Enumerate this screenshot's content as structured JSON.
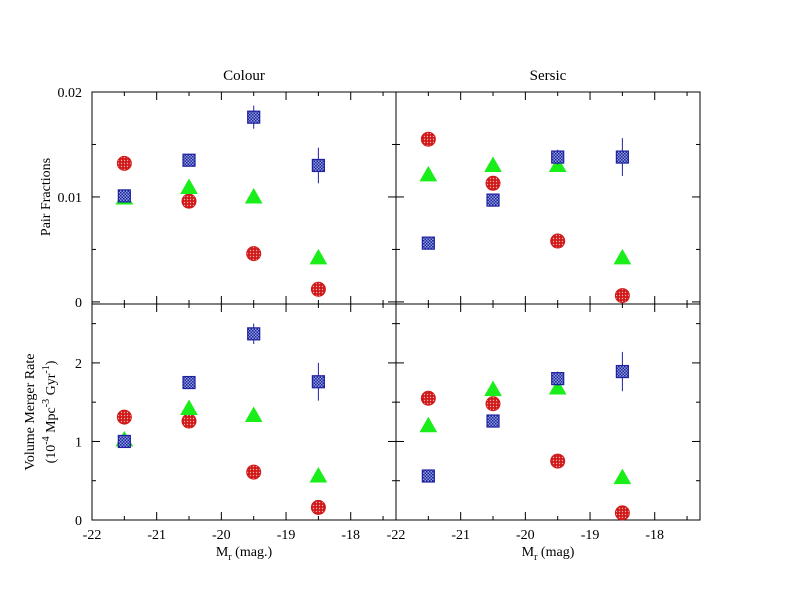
{
  "colors": {
    "red": "#d01818",
    "green": "#1aee1a",
    "blue": "#2020a0",
    "blue_fill": "#8aa0d8"
  },
  "chart_data": [
    {
      "type": "scatter",
      "title": "Colour",
      "xlabel": "",
      "ylabel": "Pair Fractions",
      "xlim": [
        -22,
        -17.3
      ],
      "ylim": [
        -0.0002,
        0.02
      ],
      "yticks": [
        "0",
        "0.01",
        "0.02"
      ],
      "series": [
        {
          "name": "red-circles",
          "marker": "circle",
          "points": [
            {
              "x": -21.5,
              "y": 0.0132
            },
            {
              "x": -20.5,
              "y": 0.0096
            },
            {
              "x": -19.5,
              "y": 0.0046
            },
            {
              "x": -18.5,
              "y": 0.0012
            }
          ]
        },
        {
          "name": "green-triangles",
          "marker": "triangle",
          "points": [
            {
              "x": -21.5,
              "y": 0.0099
            },
            {
              "x": -20.5,
              "y": 0.0109
            },
            {
              "x": -19.5,
              "y": 0.01
            },
            {
              "x": -18.5,
              "y": 0.0042
            }
          ]
        },
        {
          "name": "blue-squares",
          "marker": "square",
          "points": [
            {
              "x": -21.5,
              "y": 0.0101,
              "err": 0.0003
            },
            {
              "x": -20.5,
              "y": 0.0135,
              "err": 0.0004
            },
            {
              "x": -19.5,
              "y": 0.0176,
              "err": 0.0011
            },
            {
              "x": -18.5,
              "y": 0.013,
              "err": 0.0017
            }
          ]
        }
      ]
    },
    {
      "type": "scatter",
      "title": "Sersic",
      "xlabel": "",
      "ylabel": "",
      "xlim": [
        -22,
        -17.3
      ],
      "ylim": [
        -0.0002,
        0.02
      ],
      "yticks": [],
      "series": [
        {
          "name": "red-circles",
          "marker": "circle",
          "points": [
            {
              "x": -21.5,
              "y": 0.0155
            },
            {
              "x": -20.5,
              "y": 0.0113
            },
            {
              "x": -19.5,
              "y": 0.0058
            },
            {
              "x": -18.5,
              "y": 0.0006
            }
          ]
        },
        {
          "name": "green-triangles",
          "marker": "triangle",
          "points": [
            {
              "x": -21.5,
              "y": 0.0121
            },
            {
              "x": -20.5,
              "y": 0.013
            },
            {
              "x": -19.5,
              "y": 0.013
            },
            {
              "x": -18.5,
              "y": 0.0042
            }
          ]
        },
        {
          "name": "blue-squares",
          "marker": "square",
          "points": [
            {
              "x": -21.5,
              "y": 0.0056,
              "err": 0.0002
            },
            {
              "x": -20.5,
              "y": 0.0097,
              "err": 0.0003
            },
            {
              "x": -19.5,
              "y": 0.0138,
              "err": 0.0007
            },
            {
              "x": -18.5,
              "y": 0.0138,
              "err": 0.0018
            }
          ]
        }
      ]
    },
    {
      "type": "scatter",
      "title": "",
      "xlabel": "M_r (mag.)",
      "ylabel": "Volume Merger Rate (10^-4 Mpc^-3 Gyr^-1)",
      "xlim": [
        -22,
        -17.3
      ],
      "ylim": [
        0,
        2.75
      ],
      "yticks": [
        "0",
        "1",
        "2"
      ],
      "xticks": [
        "-22",
        "-21",
        "-20",
        "-19",
        "-18"
      ],
      "series": [
        {
          "name": "red-circles",
          "marker": "circle",
          "points": [
            {
              "x": -21.5,
              "y": 1.31
            },
            {
              "x": -20.5,
              "y": 1.26
            },
            {
              "x": -19.5,
              "y": 0.61
            },
            {
              "x": -18.5,
              "y": 0.16
            }
          ]
        },
        {
          "name": "green-triangles",
          "marker": "triangle",
          "points": [
            {
              "x": -21.5,
              "y": 1.02
            },
            {
              "x": -20.5,
              "y": 1.42
            },
            {
              "x": -19.5,
              "y": 1.33
            },
            {
              "x": -18.5,
              "y": 0.56
            }
          ]
        },
        {
          "name": "blue-squares",
          "marker": "square",
          "points": [
            {
              "x": -21.5,
              "y": 1.0,
              "err": 0.04
            },
            {
              "x": -20.5,
              "y": 1.75,
              "err": 0.05
            },
            {
              "x": -19.5,
              "y": 2.37,
              "err": 0.13
            },
            {
              "x": -18.5,
              "y": 1.76,
              "err": 0.24
            }
          ]
        }
      ]
    },
    {
      "type": "scatter",
      "title": "",
      "xlabel": "M_r (mag)",
      "ylabel": "",
      "xlim": [
        -22,
        -17.3
      ],
      "ylim": [
        0,
        2.75
      ],
      "yticks": [],
      "xticks": [
        "-22",
        "-21",
        "-20",
        "-19",
        "-18"
      ],
      "series": [
        {
          "name": "red-circles",
          "marker": "circle",
          "points": [
            {
              "x": -21.5,
              "y": 1.55
            },
            {
              "x": -20.5,
              "y": 1.48
            },
            {
              "x": -19.5,
              "y": 0.75
            },
            {
              "x": -18.5,
              "y": 0.09
            }
          ]
        },
        {
          "name": "green-triangles",
          "marker": "triangle",
          "points": [
            {
              "x": -21.5,
              "y": 1.2
            },
            {
              "x": -20.5,
              "y": 1.66
            },
            {
              "x": -19.5,
              "y": 1.68
            },
            {
              "x": -18.5,
              "y": 0.54
            }
          ]
        },
        {
          "name": "blue-squares",
          "marker": "square",
          "points": [
            {
              "x": -21.5,
              "y": 0.56,
              "err": 0.03
            },
            {
              "x": -20.5,
              "y": 1.26,
              "err": 0.04
            },
            {
              "x": -19.5,
              "y": 1.8,
              "err": 0.09
            },
            {
              "x": -18.5,
              "y": 1.89,
              "err": 0.25
            }
          ]
        }
      ]
    }
  ],
  "labels": {
    "title_colour": "Colour",
    "title_sersic": "Sersic",
    "ylabel_top": "Pair Fractions",
    "ylabel_bottom_line1": "Volume Merger Rate",
    "ylabel_bottom_line2_a": "(10",
    "ylabel_bottom_line2_exp1": "-4",
    "ylabel_bottom_line2_b": " Mpc",
    "ylabel_bottom_line2_exp2": "-3",
    "ylabel_bottom_line2_c": " Gyr",
    "ylabel_bottom_line2_exp3": "-1",
    "ylabel_bottom_line2_d": ")",
    "xlabel_left_M": "M",
    "xlabel_left_sub": "r",
    "xlabel_left_rest": " (mag.)",
    "xlabel_right_M": "M",
    "xlabel_right_sub": "r",
    "xlabel_right_rest": " (mag)"
  }
}
